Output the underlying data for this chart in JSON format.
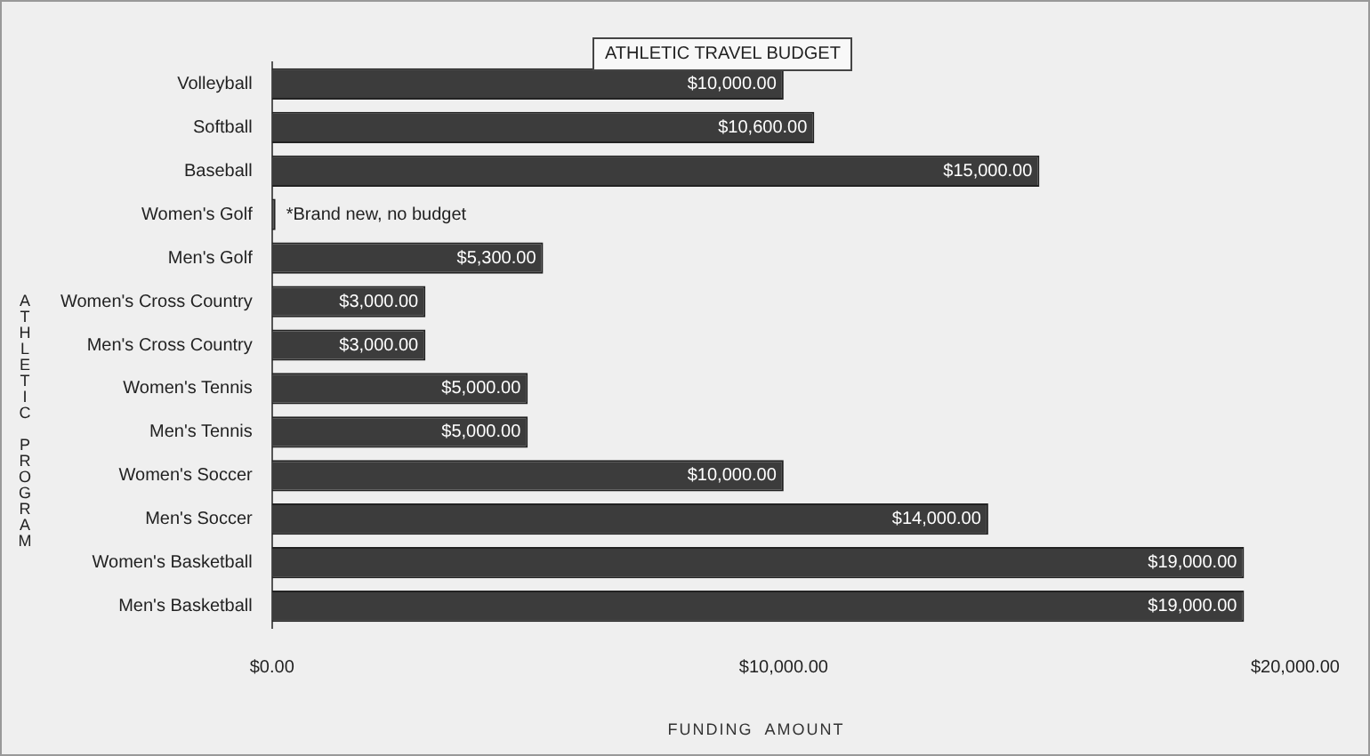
{
  "chart_data": {
    "type": "bar",
    "orientation": "horizontal",
    "title": "ATHLETIC TRAVEL BUDGET",
    "xlabel": "FUNDING  AMOUNT",
    "ylabel": "ATHLETIC PROGRAM",
    "categories": [
      "Volleyball",
      "Softball",
      "Baseball",
      "Women's Golf",
      "Men's Golf",
      "Women's Cross Country",
      "Men's Cross Country",
      "Women's Tennis",
      "Men's Tennis",
      "Women's Soccer",
      "Men's Soccer",
      "Women's Basketball",
      "Men's Basketball"
    ],
    "values": [
      10000,
      10600,
      15000,
      0,
      5300,
      3000,
      3000,
      5000,
      5000,
      10000,
      14000,
      19000,
      19000
    ],
    "value_labels": [
      "$10,000.00",
      "$10,600.00",
      "$15,000.00",
      null,
      "$5,300.00",
      "$3,000.00",
      "$3,000.00",
      "$5,000.00",
      "$5,000.00",
      "$10,000.00",
      "$14,000.00",
      "$19,000.00",
      "$19,000.00"
    ],
    "color": "#3c3c3c",
    "xlim": [
      0,
      20000
    ],
    "xticks": [
      {
        "value": 0,
        "label": "$0.00"
      },
      {
        "value": 10000,
        "label": "$10,000.00"
      },
      {
        "value": 20000,
        "label": "$20,000.00"
      }
    ],
    "grid": false,
    "legend": false,
    "annotations": [
      {
        "text": "*Brand new, no budget",
        "x": 0,
        "y": "Women's Golf"
      }
    ]
  }
}
